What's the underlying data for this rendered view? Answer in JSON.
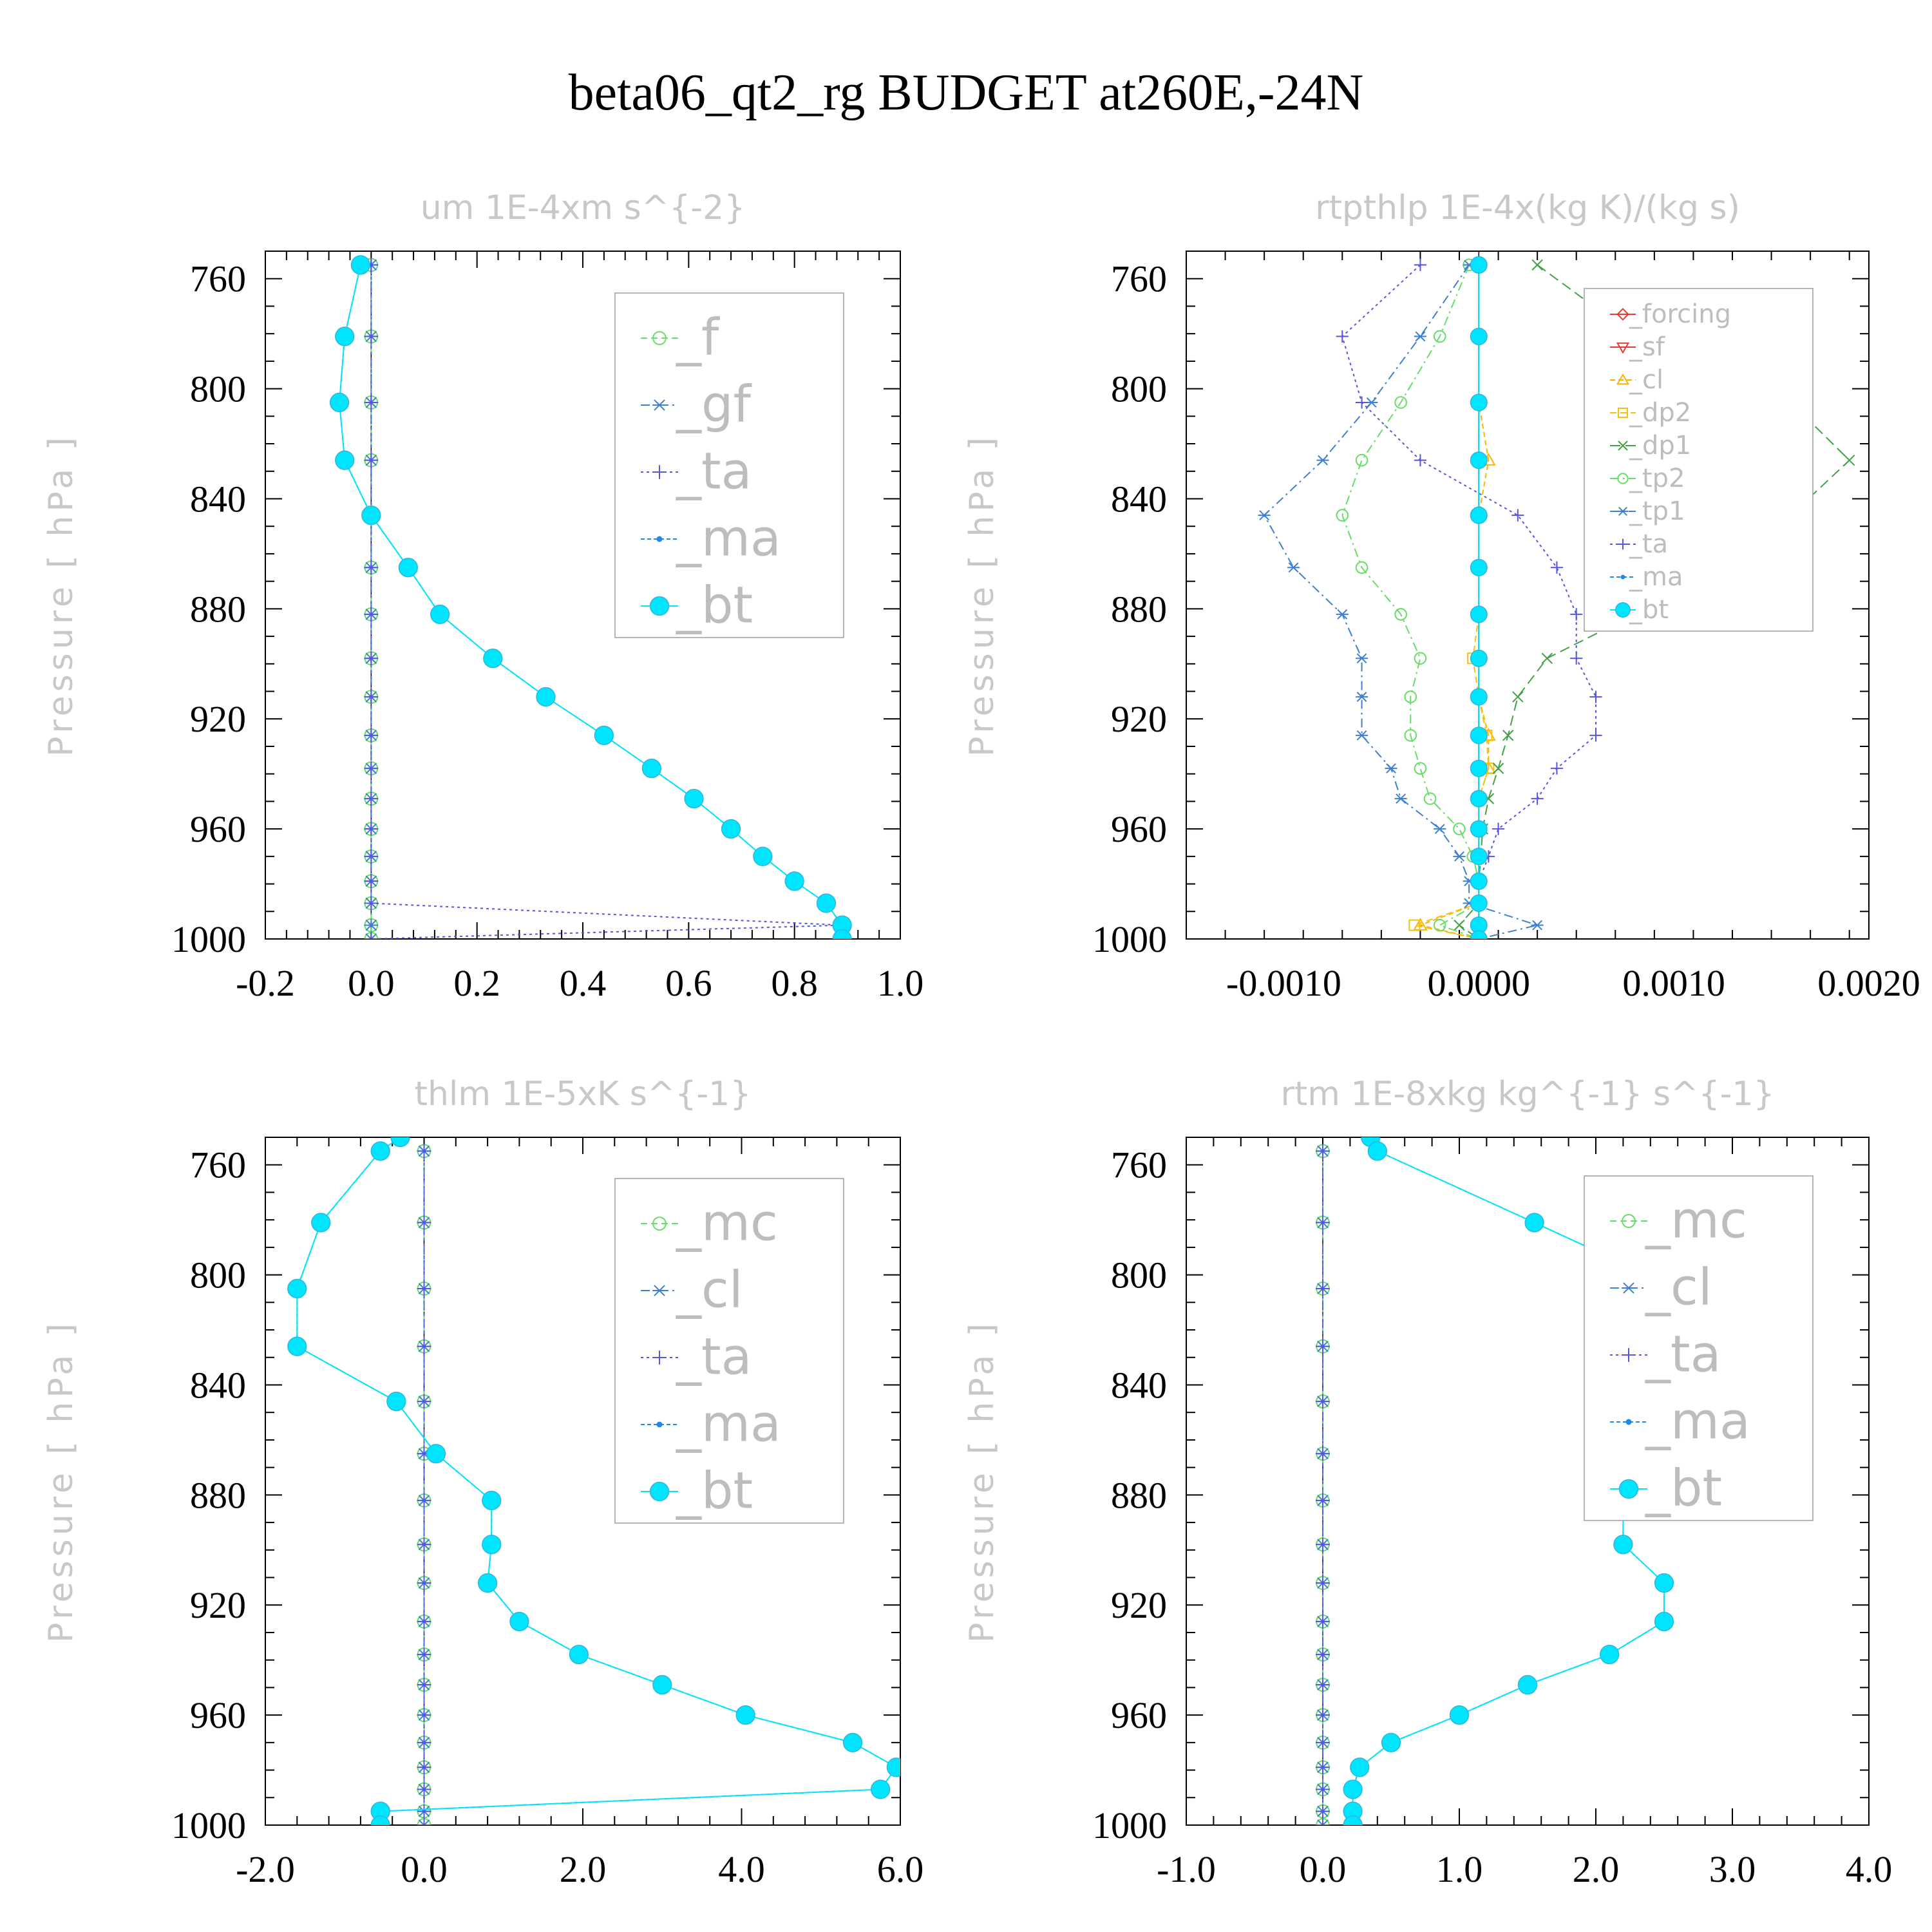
{
  "title": "beta06_qt2_rg  BUDGET at260E,-24N",
  "colors": {
    "f": "#66dd66",
    "gf": "#3d7fd0",
    "ta": "#5555dd",
    "ma": "#1e88e5",
    "bt": "#00e5ff",
    "mc": "#66dd66",
    "cl": "#3d7fd0",
    "forcing": "#e53935",
    "sf": "#e53935",
    "cl_rtp": "#ffb300",
    "dp2": "#f4c20d",
    "dp1": "#43a047",
    "tp2": "#66dd66",
    "tp1": "#3d7fd0",
    "zero_line": "#000000",
    "axis": "#000000",
    "title_text": "#c8c8c8"
  },
  "chart_data": [
    {
      "type": "line",
      "title": "um  1E-4xm s^{-2}",
      "ylabel": "Pressure [ hPa ]",
      "xlim": [
        -0.2,
        1.0
      ],
      "ylim": [
        1000,
        750
      ],
      "xticks": [
        -0.2,
        0.0,
        0.2,
        0.4,
        0.6,
        0.8,
        1.0
      ],
      "xtick_labels": [
        "-0.2",
        "0.0",
        "0.2",
        "0.4",
        "0.6",
        "0.8",
        "1.0"
      ],
      "yticks": [
        760,
        800,
        840,
        880,
        920,
        960,
        1000
      ],
      "ytick_labels": [
        "760",
        "800",
        "840",
        "880",
        "920",
        "960",
        "1000"
      ],
      "legend": {
        "position": "top-right",
        "labels": [
          "_f",
          "_gf",
          "_ta",
          "_ma",
          "_bt"
        ]
      },
      "y": [
        755,
        781,
        805,
        826,
        846,
        865,
        882,
        898,
        912,
        926,
        938,
        949,
        960,
        970,
        979,
        987,
        995,
        1000
      ],
      "series": [
        {
          "name": "_f",
          "color_key": "f",
          "marker": "circle",
          "dash": "10,6",
          "values": [
            0,
            0,
            0,
            0,
            0,
            0,
            0,
            0,
            0,
            0,
            0,
            0,
            0,
            0,
            0,
            0,
            0,
            0
          ]
        },
        {
          "name": "_gf",
          "color_key": "gf",
          "marker": "asterisk",
          "dash": "14,6,3,6",
          "values": [
            0,
            0,
            0,
            0,
            0,
            0,
            0,
            0,
            0,
            0,
            0,
            0,
            0,
            0,
            0,
            0,
            0,
            0
          ]
        },
        {
          "name": "_ta",
          "color_key": "ta",
          "marker": "plus",
          "dash": "4,5",
          "values": [
            0,
            0,
            0,
            0,
            0,
            0,
            0,
            0,
            0,
            0,
            0,
            0,
            0,
            0,
            0,
            0,
            0.89,
            0
          ]
        },
        {
          "name": "_ma",
          "color_key": "ma",
          "marker": "dot",
          "dash": "6,4",
          "values": [
            -0.02,
            -0.05,
            -0.06,
            -0.05,
            0.0,
            0.07,
            0.13,
            0.23,
            0.33,
            0.44,
            0.53,
            0.61,
            0.68,
            0.74,
            0.8,
            0.86,
            0.89,
            0.89
          ]
        },
        {
          "name": "_bt",
          "color_key": "bt",
          "marker": "bigdot",
          "dash": "",
          "values": [
            -0.02,
            -0.05,
            -0.06,
            -0.05,
            0.0,
            0.07,
            0.13,
            0.23,
            0.33,
            0.44,
            0.53,
            0.61,
            0.68,
            0.74,
            0.8,
            0.86,
            0.89,
            0.89
          ]
        }
      ]
    },
    {
      "type": "line",
      "title": "rtpthlp  1E-4x(kg K)/(kg s)",
      "ylabel": "Pressure [ hPa ]",
      "xlim": [
        -0.0015,
        0.002
      ],
      "ylim": [
        1000,
        750
      ],
      "xticks": [
        -0.001,
        0.0,
        0.001,
        0.002
      ],
      "xtick_labels": [
        "-0.0010",
        "0.0000",
        "0.0010",
        "0.0020"
      ],
      "yticks": [
        760,
        800,
        840,
        880,
        920,
        960,
        1000
      ],
      "ytick_labels": [
        "760",
        "800",
        "840",
        "880",
        "920",
        "960",
        "1000"
      ],
      "legend": {
        "position": "top-right",
        "labels": [
          "_forcing",
          "_sf",
          "_cl",
          "_dp2",
          "_dp1",
          "_tp2",
          "_tp1",
          "_ta",
          "_ma",
          "_bt"
        ]
      },
      "y": [
        755,
        781,
        805,
        826,
        846,
        865,
        882,
        898,
        912,
        926,
        938,
        949,
        960,
        970,
        979,
        987,
        995,
        1000
      ],
      "series": [
        {
          "name": "_forcing",
          "color_key": "forcing",
          "marker": "diamond",
          "dash": "",
          "values": [
            0,
            0,
            0,
            0,
            0,
            0,
            0,
            0,
            0,
            0,
            0,
            0,
            0,
            0,
            0,
            0,
            0,
            0
          ]
        },
        {
          "name": "_sf",
          "color_key": "sf",
          "marker": "tridown",
          "dash": "",
          "values": [
            0,
            0,
            0,
            0,
            0,
            0,
            0,
            0,
            0,
            0,
            0,
            0,
            0,
            0,
            0,
            0,
            0,
            0
          ]
        },
        {
          "name": "_cl",
          "color_key": "cl_rtp",
          "marker": "triup",
          "dash": "8,5",
          "values": [
            0,
            0,
            0,
            5e-05,
            0,
            0,
            0,
            0,
            0,
            5e-05,
            5e-05,
            0,
            0,
            0,
            0,
            0,
            -0.0003,
            0
          ]
        },
        {
          "name": "_dp2",
          "color_key": "dp2",
          "marker": "square",
          "dash": "10,6",
          "values": [
            0,
            0,
            0,
            0,
            0,
            0,
            0,
            -3e-05,
            0,
            4e-05,
            5e-05,
            0,
            0,
            0,
            0,
            0,
            -0.00033,
            0
          ]
        },
        {
          "name": "_dp1",
          "color_key": "dp1",
          "marker": "x",
          "dash": "16,8",
          "values": [
            0.0003,
            0.0008,
            0.0016,
            0.0019,
            0.0016,
            0.0012,
            0.0008,
            0.00035,
            0.0002,
            0.00015,
            0.0001,
            5e-05,
            2e-05,
            1e-05,
            0,
            0,
            -0.0001,
            0
          ]
        },
        {
          "name": "_tp2",
          "color_key": "tp2",
          "marker": "circle",
          "dash": "14,6,3,6",
          "values": [
            -5e-05,
            -0.0002,
            -0.0004,
            -0.0006,
            -0.0007,
            -0.0006,
            -0.0004,
            -0.0003,
            -0.00035,
            -0.00035,
            -0.0003,
            -0.00025,
            -0.0001,
            -3e-05,
            0,
            0,
            -0.0002,
            0
          ]
        },
        {
          "name": "_tp1",
          "color_key": "tp1",
          "marker": "asterisk",
          "dash": "14,6,3,6",
          "values": [
            -5e-05,
            -0.0003,
            -0.00055,
            -0.0008,
            -0.0011,
            -0.00095,
            -0.0007,
            -0.0006,
            -0.0006,
            -0.0006,
            -0.00045,
            -0.0004,
            -0.0002,
            -0.0001,
            -5e-05,
            -5e-05,
            0.0003,
            0
          ]
        },
        {
          "name": "_ta",
          "color_key": "ta",
          "marker": "plus",
          "dash": "4,5",
          "values": [
            -0.0003,
            -0.0007,
            -0.0006,
            -0.0003,
            0.0002,
            0.0004,
            0.0005,
            0.0005,
            0.0006,
            0.0006,
            0.0004,
            0.0003,
            0.0001,
            5e-05,
            0,
            0,
            0,
            0
          ]
        },
        {
          "name": "_ma",
          "color_key": "ma",
          "marker": "dot",
          "dash": "6,4",
          "values": [
            0,
            0,
            0,
            0,
            0,
            0,
            0,
            0,
            0,
            0,
            0,
            0,
            0,
            0,
            0,
            0,
            0,
            0
          ]
        },
        {
          "name": "_bt",
          "color_key": "bt",
          "marker": "bigdot",
          "dash": "",
          "values": [
            0,
            0,
            0,
            0,
            0,
            0,
            0,
            0,
            0,
            0,
            0,
            0,
            0,
            0,
            0,
            0,
            0,
            0
          ]
        }
      ]
    },
    {
      "type": "line",
      "title": "thlm  1E-5xK s^{-1}",
      "ylabel": "Pressure [ hPa ]",
      "xlim": [
        -2.0,
        6.0
      ],
      "ylim": [
        1000,
        750
      ],
      "xticks": [
        -2.0,
        0.0,
        2.0,
        4.0,
        6.0
      ],
      "xtick_labels": [
        "-2.0",
        "0.0",
        "2.0",
        "4.0",
        "6.0"
      ],
      "yticks": [
        760,
        800,
        840,
        880,
        920,
        960,
        1000
      ],
      "ytick_labels": [
        "760",
        "800",
        "840",
        "880",
        "920",
        "960",
        "1000"
      ],
      "legend": {
        "position": "top-right",
        "labels": [
          "_mc",
          "_cl",
          "_ta",
          "_ma",
          "_bt"
        ]
      },
      "y": [
        750,
        755,
        781,
        805,
        826,
        846,
        865,
        882,
        898,
        912,
        926,
        938,
        949,
        960,
        970,
        979,
        987,
        995,
        1000
      ],
      "series": [
        {
          "name": "_mc",
          "color_key": "mc",
          "marker": "circle",
          "dash": "10,6",
          "values": [
            null,
            0,
            0,
            0,
            0,
            0,
            0,
            0,
            0,
            0,
            0,
            0,
            0,
            0,
            0,
            0,
            0,
            0,
            0
          ]
        },
        {
          "name": "_cl",
          "color_key": "cl",
          "marker": "asterisk",
          "dash": "14,6,3,6",
          "values": [
            null,
            0,
            0,
            0,
            0,
            0,
            0,
            0,
            0,
            0,
            0,
            0,
            0,
            0,
            0,
            0,
            0,
            0,
            0
          ]
        },
        {
          "name": "_ta",
          "color_key": "ta",
          "marker": "plus",
          "dash": "4,5",
          "values": [
            null,
            0,
            0,
            0,
            0,
            0,
            0,
            0,
            0,
            0,
            0,
            0,
            0,
            0,
            0,
            0,
            0,
            0,
            0
          ]
        },
        {
          "name": "_ma",
          "color_key": "ma",
          "marker": "dot",
          "dash": "6,4",
          "values": [
            -0.3,
            -0.55,
            -1.3,
            -1.6,
            -1.6,
            -0.35,
            0.15,
            0.85,
            0.85,
            0.8,
            1.2,
            1.95,
            3.0,
            4.05,
            5.4,
            5.95,
            5.75,
            -0.55,
            -0.55
          ]
        },
        {
          "name": "_bt",
          "color_key": "bt",
          "marker": "bigdot",
          "dash": "",
          "values": [
            -0.3,
            -0.55,
            -1.3,
            -1.6,
            -1.6,
            -0.35,
            0.15,
            0.85,
            0.85,
            0.8,
            1.2,
            1.95,
            3.0,
            4.05,
            5.4,
            5.95,
            5.75,
            -0.55,
            -0.55
          ]
        }
      ]
    },
    {
      "type": "line",
      "title": "rtm  1E-8xkg kg^{-1} s^{-1}",
      "ylabel": "Pressure [ hPa ]",
      "xlim": [
        -1.0,
        4.0
      ],
      "ylim": [
        1000,
        750
      ],
      "xticks": [
        -1.0,
        0.0,
        1.0,
        2.0,
        3.0,
        4.0
      ],
      "xtick_labels": [
        "-1.0",
        "0.0",
        "1.0",
        "2.0",
        "3.0",
        "4.0"
      ],
      "yticks": [
        760,
        800,
        840,
        880,
        920,
        960,
        1000
      ],
      "ytick_labels": [
        "760",
        "800",
        "840",
        "880",
        "920",
        "960",
        "1000"
      ],
      "legend": {
        "position": "top-right",
        "labels": [
          "_mc",
          "_cl",
          "_ta",
          "_ma",
          "_bt"
        ]
      },
      "y": [
        750,
        755,
        781,
        805,
        826,
        846,
        865,
        882,
        898,
        912,
        926,
        938,
        949,
        960,
        970,
        979,
        987,
        995,
        1000
      ],
      "series": [
        {
          "name": "_mc",
          "color_key": "mc",
          "marker": "circle",
          "dash": "10,6",
          "values": [
            null,
            0,
            0,
            0,
            0,
            0,
            0,
            0,
            0,
            0,
            0,
            0,
            0,
            0,
            0,
            0,
            0,
            0,
            0
          ]
        },
        {
          "name": "_cl",
          "color_key": "cl",
          "marker": "asterisk",
          "dash": "14,6,3,6",
          "values": [
            null,
            0,
            0,
            0,
            0,
            0,
            0,
            0,
            0,
            0,
            0,
            0,
            0,
            0,
            0,
            0,
            0,
            0,
            0
          ]
        },
        {
          "name": "_ta",
          "color_key": "ta",
          "marker": "plus",
          "dash": "4,5",
          "values": [
            null,
            0,
            0,
            0,
            0,
            0,
            0,
            0,
            0,
            0,
            0,
            0,
            0,
            0,
            0,
            0,
            0,
            0,
            0
          ]
        },
        {
          "name": "_ma",
          "color_key": "ma",
          "marker": "dot",
          "dash": "6,4",
          "values": [
            0.35,
            0.4,
            1.55,
            2.6,
            3.4,
            3.5,
            2.9,
            2.2,
            2.2,
            2.5,
            2.5,
            2.1,
            1.5,
            1.0,
            0.5,
            0.27,
            0.22,
            0.22,
            0.22
          ]
        },
        {
          "name": "_bt",
          "color_key": "bt",
          "marker": "bigdot",
          "dash": "",
          "values": [
            0.35,
            0.4,
            1.55,
            2.6,
            3.4,
            3.5,
            2.9,
            2.2,
            2.2,
            2.5,
            2.5,
            2.1,
            1.5,
            1.0,
            0.5,
            0.27,
            0.22,
            0.22,
            0.22
          ]
        }
      ]
    }
  ]
}
